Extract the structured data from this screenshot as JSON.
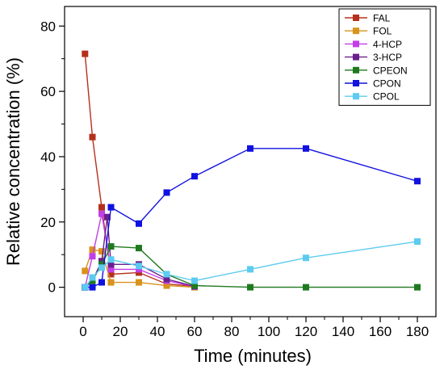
{
  "chart_data": {
    "type": "line",
    "title": "",
    "xlabel": "Time (minutes)",
    "ylabel": "Relative concentration (%)",
    "xlim": [
      -10,
      190
    ],
    "ylim": [
      -9,
      86
    ],
    "xticks": [
      0,
      20,
      40,
      60,
      80,
      100,
      120,
      140,
      160,
      180
    ],
    "yticks": [
      0,
      20,
      40,
      60,
      80
    ],
    "legend_position": "top-right",
    "grid": false,
    "series": [
      {
        "name": "FAL",
        "color": "#b5301c",
        "points": [
          [
            1,
            71.5
          ],
          [
            5,
            46
          ],
          [
            10,
            24.5
          ],
          [
            15,
            4
          ],
          [
            30,
            4.5
          ],
          [
            45,
            1
          ],
          [
            60,
            0.3
          ]
        ]
      },
      {
        "name": "FOL",
        "color": "#d8931c",
        "points": [
          [
            1,
            5
          ],
          [
            5,
            11.5
          ],
          [
            10,
            11
          ],
          [
            15,
            1.5
          ],
          [
            30,
            1.5
          ],
          [
            45,
            0.5
          ],
          [
            60,
            0
          ]
        ]
      },
      {
        "name": "4-HCP",
        "color": "#c23ee8",
        "points": [
          [
            1,
            0
          ],
          [
            5,
            9.5
          ],
          [
            10,
            22.5
          ],
          [
            15,
            5.5
          ],
          [
            30,
            5.5
          ],
          [
            45,
            2
          ],
          [
            60,
            0.2
          ]
        ]
      },
      {
        "name": "3-HCP",
        "color": "#6a1f8c",
        "points": [
          [
            1,
            0
          ],
          [
            5,
            2
          ],
          [
            10,
            8
          ],
          [
            13,
            21.5
          ],
          [
            15,
            7
          ],
          [
            30,
            7
          ],
          [
            45,
            2.5
          ],
          [
            60,
            0.3
          ]
        ]
      },
      {
        "name": "CPEON",
        "color": "#1f7a1f",
        "points": [
          [
            1,
            0
          ],
          [
            5,
            2
          ],
          [
            10,
            7
          ],
          [
            15,
            12.5
          ],
          [
            30,
            12
          ],
          [
            45,
            4
          ],
          [
            60,
            0.5
          ],
          [
            90,
            0
          ],
          [
            120,
            0
          ],
          [
            180,
            0
          ]
        ]
      },
      {
        "name": "CPON",
        "color": "#1111e0",
        "points": [
          [
            1,
            0
          ],
          [
            5,
            0
          ],
          [
            10,
            1.5
          ],
          [
            15,
            24.5
          ],
          [
            30,
            19.5
          ],
          [
            45,
            29
          ],
          [
            60,
            34
          ],
          [
            90,
            42.5
          ],
          [
            120,
            42.5
          ],
          [
            180,
            32.5
          ]
        ]
      },
      {
        "name": "CPOL",
        "color": "#5ccbf0",
        "points": [
          [
            1,
            0
          ],
          [
            5,
            3
          ],
          [
            10,
            6
          ],
          [
            15,
            8.5
          ],
          [
            30,
            6.5
          ],
          [
            45,
            4
          ],
          [
            60,
            2
          ],
          [
            90,
            5.5
          ],
          [
            120,
            9
          ],
          [
            180,
            14
          ]
        ]
      }
    ]
  }
}
